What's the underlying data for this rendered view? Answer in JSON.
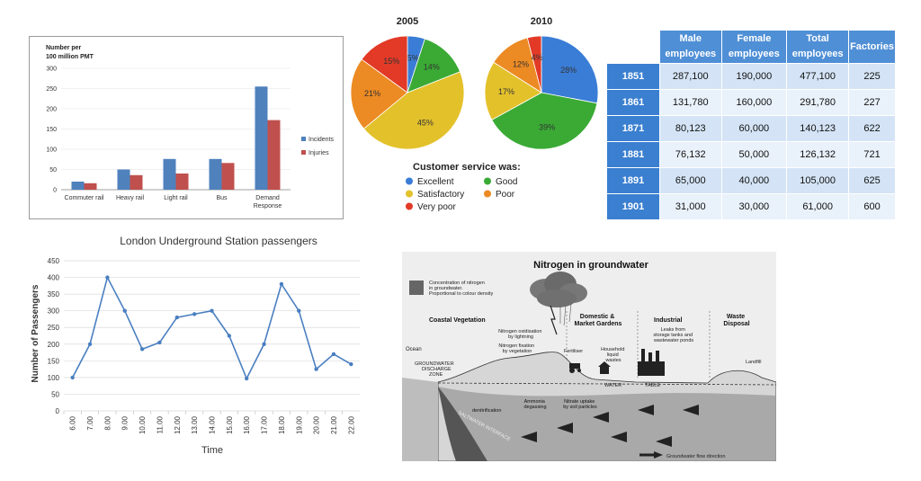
{
  "chart_data": [
    {
      "type": "bar",
      "ylabel": "Number per\n100 million PMT",
      "categories": [
        "Commuter rail",
        "Heavy rail",
        "Light rail",
        "Bus",
        "Demand\nResponse"
      ],
      "series": [
        {
          "name": "Incidents",
          "values": [
            20,
            50,
            76,
            76,
            255
          ],
          "color": "#4f81bd"
        },
        {
          "name": "Injuries",
          "values": [
            16,
            36,
            40,
            66,
            172
          ],
          "color": "#c0504d"
        }
      ],
      "ylim": [
        0,
        300
      ],
      "yticks": [
        0,
        50,
        100,
        150,
        200,
        250,
        300
      ],
      "legend": "right"
    },
    {
      "type": "pie",
      "title": "2005",
      "slices": [
        {
          "label": "Excellent",
          "value": 5,
          "text": "5%",
          "color": "#3a7dd6"
        },
        {
          "label": "Good",
          "value": 14,
          "text": "14%",
          "color": "#3aaa35"
        },
        {
          "label": "Satisfactory",
          "value": 45,
          "text": "45%",
          "color": "#e3c12b"
        },
        {
          "label": "Poor",
          "value": 21,
          "text": "21%",
          "color": "#ec8a23"
        },
        {
          "label": "Very poor",
          "value": 15,
          "text": "15%",
          "color": "#e23a27"
        }
      ]
    },
    {
      "type": "pie",
      "title": "2010",
      "slices": [
        {
          "label": "Excellent",
          "value": 28,
          "text": "28%",
          "color": "#3a7dd6"
        },
        {
          "label": "Good",
          "value": 39,
          "text": "39%",
          "color": "#3aaa35"
        },
        {
          "label": "Satisfactory",
          "value": 17,
          "text": "17%",
          "color": "#e3c12b"
        },
        {
          "label": "Poor",
          "value": 12,
          "text": "12%",
          "color": "#ec8a23"
        },
        {
          "label": "Very poor",
          "value": 4,
          "text": "4%",
          "color": "#e23a27"
        }
      ]
    },
    {
      "type": "table",
      "columns": [
        "Male employees",
        "Female employees",
        "Total employees",
        "Factories"
      ],
      "rows": [
        {
          "year": "1851",
          "cells": [
            "287,100",
            "190,000",
            "477,100",
            "225"
          ]
        },
        {
          "year": "1861",
          "cells": [
            "131,780",
            "160,000",
            "291,780",
            "227"
          ]
        },
        {
          "year": "1871",
          "cells": [
            "80,123",
            "60,000",
            "140,123",
            "622"
          ]
        },
        {
          "year": "1881",
          "cells": [
            "76,132",
            "50,000",
            "126,132",
            "721"
          ]
        },
        {
          "year": "1891",
          "cells": [
            "65,000",
            "40,000",
            "105,000",
            "625"
          ]
        },
        {
          "year": "1901",
          "cells": [
            "31,000",
            "30,000",
            "61,000",
            "600"
          ]
        }
      ]
    },
    {
      "type": "line",
      "title": "London Underground Station passengers",
      "xlabel": "Time",
      "ylabel": "Number of Passengers",
      "x": [
        "6.00",
        "7.00",
        "8.00",
        "9.00",
        "10.00",
        "11.00",
        "12.00",
        "13.00",
        "14.00",
        "15.00",
        "16.00",
        "17.00",
        "18.00",
        "19.00",
        "20.00",
        "21.00",
        "22.00"
      ],
      "values": [
        100,
        200,
        400,
        300,
        185,
        205,
        280,
        290,
        300,
        225,
        97,
        200,
        380,
        300,
        125,
        170,
        140
      ],
      "ylim": [
        0,
        450
      ],
      "yticks": [
        0,
        50,
        100,
        150,
        200,
        250,
        300,
        350,
        400,
        450
      ],
      "grid": true,
      "color": "#4a7fc1"
    }
  ],
  "pie_legend": {
    "title": "Customer service was:",
    "items": [
      {
        "label": "Excellent",
        "color": "#3a7dd6"
      },
      {
        "label": "Good",
        "color": "#3aaa35"
      },
      {
        "label": "Satisfactory",
        "color": "#e3c12b"
      },
      {
        "label": "Poor",
        "color": "#ec8a23"
      },
      {
        "label": "Very poor",
        "color": "#e23a27"
      }
    ]
  },
  "diagram": {
    "title": "Nitrogen in groundwater",
    "key_text": "Concentration of nitrogen\nin groundwater.\nProportional to colour density",
    "zones": [
      "Coastal Vegetation",
      "Domestic &\nMarket Gardens",
      "Industrial",
      "Waste\nDisposal"
    ],
    "labels": {
      "ocean": "Ocean",
      "discharge": "GROUNDWATER\nDISCHARGE\nZONE",
      "oxidisation": "Nitrogen oxidisation\nby lightning",
      "fixation": "Nitrogen fixation\nby vegetation",
      "fertiliser": "Fertiliser",
      "household": "Household\nliquid\nwastes",
      "leaks": "Leaks from\nstorage tanks and\nwastewater ponds",
      "landfill": "Landfill",
      "water": "WATER",
      "table": "TABLE",
      "denitrification": "denitrification",
      "ammonia": "Ammonia\ndegassing",
      "uptake": "Nitrate uptake\nby soil particles",
      "saltwater": "SALTWATER INTERFACE",
      "flow": "Groundwater flow direction"
    }
  }
}
